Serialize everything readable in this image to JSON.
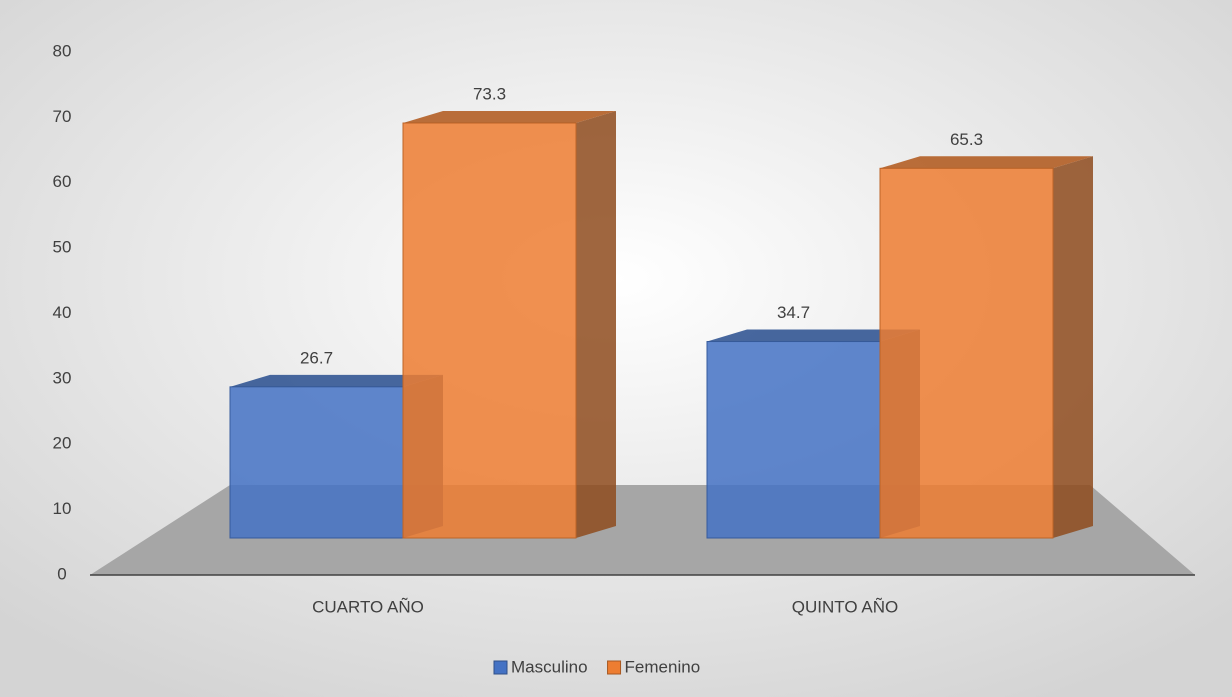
{
  "chart_data": {
    "type": "bar3d",
    "categories": [
      "CUARTO AÑO",
      "QUINTO AÑO"
    ],
    "series": [
      {
        "name": "Masculino",
        "color": "#4472c4",
        "values": [
          26.7,
          34.7
        ]
      },
      {
        "name": "Femenino",
        "color": "#ed7d31",
        "values": [
          73.3,
          65.3
        ]
      }
    ],
    "ylim": [
      0,
      80
    ],
    "yticks": [
      0,
      10,
      20,
      30,
      40,
      50,
      60,
      70,
      80
    ],
    "legend": "bottom"
  }
}
